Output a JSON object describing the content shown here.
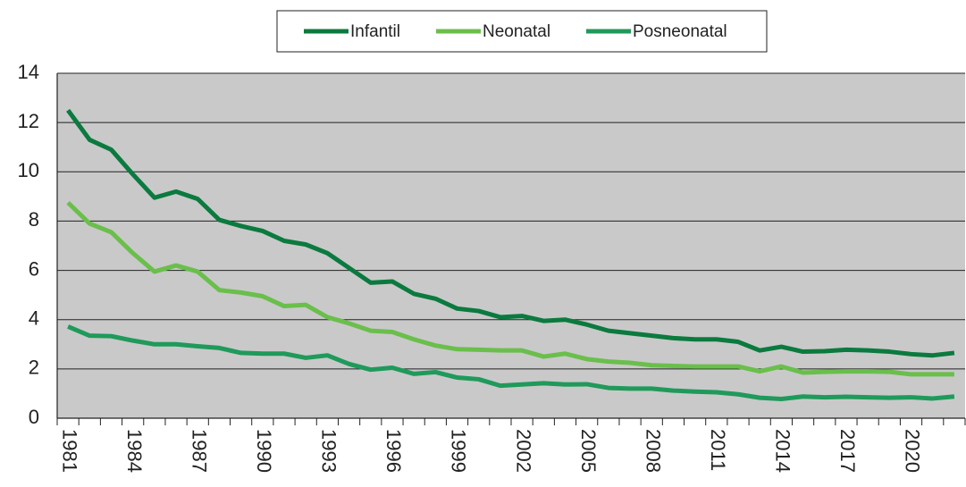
{
  "chart_data": {
    "type": "line",
    "categories": [
      "1981",
      null,
      null,
      "1984",
      null,
      null,
      "1987",
      null,
      null,
      "1990",
      null,
      null,
      "1993",
      null,
      null,
      "1996",
      null,
      null,
      "1999",
      null,
      null,
      "2002",
      null,
      null,
      "2005",
      null,
      null,
      "2008",
      null,
      null,
      "2011",
      null,
      null,
      "2014",
      null,
      null,
      "2017",
      null,
      null,
      "2020",
      null,
      null
    ],
    "series": [
      {
        "name": "Infantil",
        "color": "#0b7a3e",
        "values": [
          12.5,
          11.3,
          10.9,
          9.9,
          8.95,
          9.2,
          8.9,
          8.05,
          7.8,
          7.6,
          7.2,
          7.05,
          6.7,
          6.1,
          5.5,
          5.55,
          5.05,
          4.85,
          4.45,
          4.35,
          4.1,
          4.15,
          3.95,
          4.0,
          3.8,
          3.55,
          3.45,
          3.35,
          3.25,
          3.2,
          3.2,
          3.1,
          2.75,
          2.9,
          2.7,
          2.72,
          2.78,
          2.75,
          2.7,
          2.6,
          2.55,
          2.65
        ]
      },
      {
        "name": "Neonatal",
        "color": "#6abf4b",
        "values": [
          8.75,
          7.9,
          7.55,
          6.7,
          5.95,
          6.2,
          5.95,
          5.2,
          5.1,
          4.95,
          4.55,
          4.6,
          4.1,
          3.85,
          3.55,
          3.5,
          3.2,
          2.95,
          2.8,
          2.78,
          2.75,
          2.75,
          2.5,
          2.62,
          2.4,
          2.3,
          2.25,
          2.15,
          2.12,
          2.1,
          2.1,
          2.1,
          1.9,
          2.1,
          1.85,
          1.88,
          1.9,
          1.9,
          1.88,
          1.78,
          1.78,
          1.78
        ]
      },
      {
        "name": "Posneonatal",
        "color": "#1f9a5a",
        "values": [
          3.72,
          3.35,
          3.33,
          3.15,
          3.0,
          3.0,
          2.92,
          2.85,
          2.65,
          2.62,
          2.62,
          2.45,
          2.55,
          2.2,
          1.97,
          2.05,
          1.8,
          1.87,
          1.65,
          1.58,
          1.32,
          1.37,
          1.42,
          1.37,
          1.38,
          1.23,
          1.2,
          1.2,
          1.12,
          1.08,
          1.05,
          0.97,
          0.83,
          0.78,
          0.88,
          0.85,
          0.87,
          0.85,
          0.83,
          0.85,
          0.8,
          0.88
        ]
      }
    ],
    "ylim": [
      0,
      14
    ],
    "yticks": [
      0,
      2,
      4,
      6,
      8,
      10,
      12,
      14
    ],
    "grid": true,
    "legend": "top"
  }
}
